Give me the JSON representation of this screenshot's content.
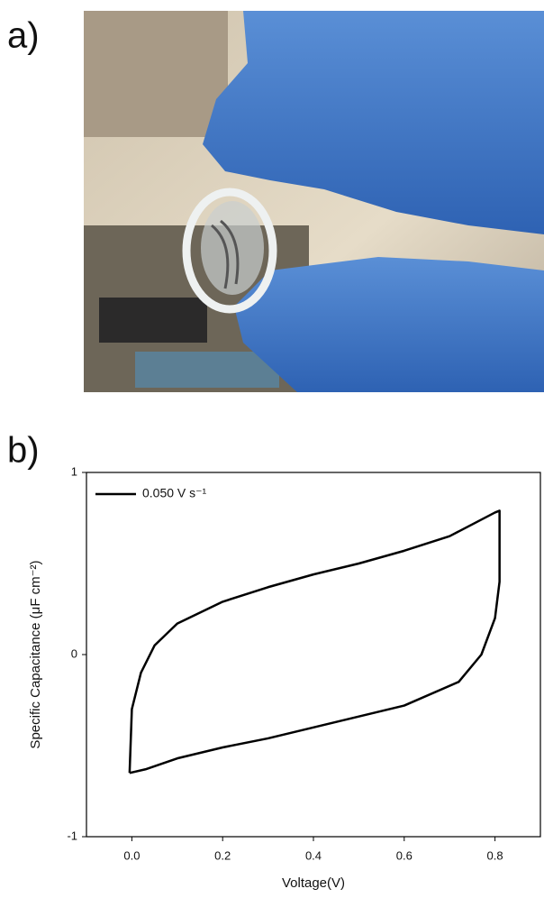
{
  "panels": [
    "a)",
    "b)"
  ],
  "chart_data": {
    "type": "line",
    "xlabel": "Voltage(V)",
    "ylabel": "Specific Capacitance (μF cm⁻²)",
    "xlim": [
      -0.1,
      0.9
    ],
    "ylim": [
      -1,
      1
    ],
    "xticks": [
      {
        "value": 0,
        "label": "0.0"
      },
      0.2,
      0.4,
      0.6,
      0.8
    ],
    "yticks": [
      -1,
      0,
      1
    ],
    "legend": "upper left",
    "x": [
      -0.005,
      0.0,
      0.02,
      0.05,
      0.1,
      0.2,
      0.3,
      0.4,
      0.5,
      0.6,
      0.7,
      0.8,
      0.81,
      0.81,
      0.8,
      0.77,
      0.72,
      0.6,
      0.5,
      0.4,
      0.3,
      0.2,
      0.1,
      0.03,
      -0.005
    ],
    "series": [
      {
        "name": "0.050 V s⁻¹",
        "color": "#000000",
        "values": [
          -0.65,
          -0.3,
          -0.1,
          0.05,
          0.17,
          0.29,
          0.37,
          0.44,
          0.5,
          0.57,
          0.65,
          0.78,
          0.79,
          0.4,
          0.2,
          0.0,
          -0.15,
          -0.28,
          -0.34,
          -0.4,
          -0.46,
          -0.51,
          -0.57,
          -0.63,
          -0.65
        ]
      }
    ]
  }
}
